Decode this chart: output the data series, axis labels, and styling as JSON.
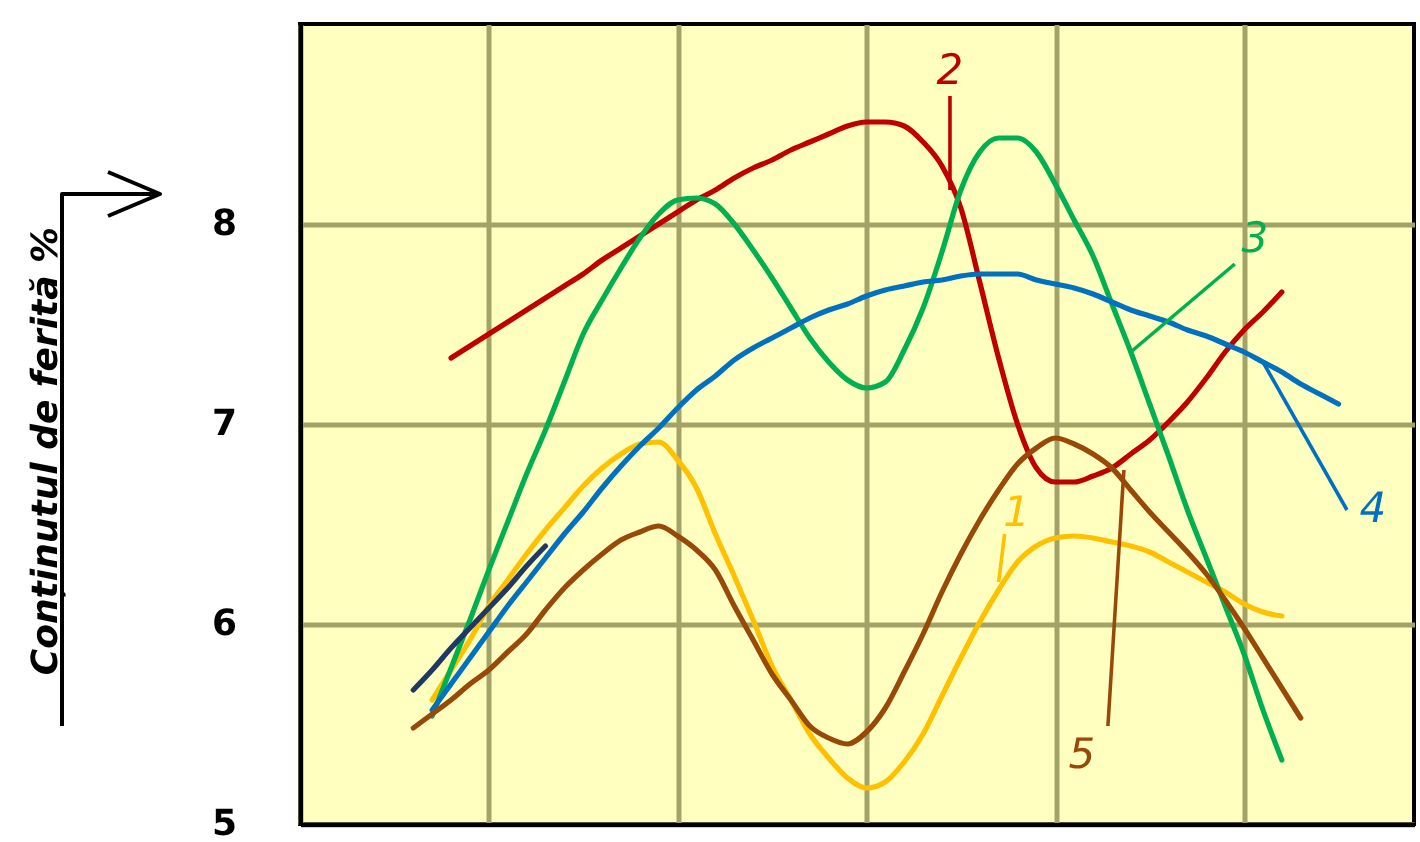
{
  "chart_data": {
    "type": "line",
    "ylabel": "Conținutul de ferită %",
    "categories": [
      null,
      null,
      null,
      null,
      null,
      null,
      null,
      null,
      null,
      null,
      null,
      null,
      null,
      null,
      null,
      null,
      null,
      null,
      null,
      null,
      null,
      null,
      null,
      null,
      null,
      null,
      null,
      null,
      null,
      null,
      null,
      null,
      null,
      null,
      null,
      null,
      null,
      null,
      null,
      null,
      null,
      null,
      null,
      null,
      null,
      null,
      null,
      null,
      null,
      null,
      null,
      null,
      null,
      null,
      null,
      null,
      null,
      null,
      null,
      null
    ],
    "ylim": [
      5,
      9
    ],
    "yticks": [
      5,
      6,
      7,
      8
    ],
    "grid": true,
    "tick_labels": "y",
    "series": [
      {
        "name": "1",
        "color": "#ffc000",
        "values": [
          null,
          null,
          null,
          null,
          null,
          null,
          null,
          5.62,
          5.77,
          5.92,
          6.09,
          6.22,
          6.35,
          6.47,
          6.58,
          6.69,
          6.78,
          6.85,
          6.9,
          6.91,
          6.82,
          6.68,
          6.45,
          6.24,
          6.02,
          5.79,
          5.62,
          5.45,
          5.33,
          5.23,
          5.18,
          5.21,
          5.31,
          5.45,
          5.64,
          5.83,
          6.01,
          6.17,
          6.31,
          6.39,
          6.43,
          6.44,
          6.43,
          6.41,
          6.39,
          6.36,
          6.31,
          6.26,
          6.21,
          6.16,
          6.1,
          6.06,
          6.04,
          null,
          null,
          null,
          null,
          null,
          null,
          null
        ]
      },
      {
        "name": "2",
        "color": "#c00000",
        "values": [
          null,
          null,
          null,
          null,
          null,
          null,
          null,
          null,
          7.33,
          7.39,
          7.45,
          7.51,
          7.57,
          7.63,
          7.69,
          7.75,
          7.82,
          7.88,
          7.94,
          8.0,
          8.06,
          8.12,
          8.17,
          8.23,
          8.28,
          8.32,
          8.37,
          8.41,
          8.45,
          8.49,
          8.51,
          8.51,
          8.49,
          8.41,
          8.29,
          8.08,
          7.71,
          7.33,
          7.0,
          6.78,
          6.71,
          6.71,
          6.74,
          6.78,
          6.85,
          6.92,
          7.01,
          7.11,
          7.23,
          7.36,
          7.47,
          7.56,
          7.66,
          null,
          null,
          null,
          null,
          null,
          null,
          null
        ]
      },
      {
        "name": "3",
        "color": "#00b050",
        "values": [
          null,
          null,
          null,
          null,
          null,
          null,
          null,
          5.54,
          5.78,
          6.02,
          6.27,
          6.51,
          6.75,
          6.97,
          7.21,
          7.45,
          7.62,
          7.78,
          7.93,
          8.05,
          8.12,
          8.13,
          8.1,
          8.0,
          7.87,
          7.73,
          7.58,
          7.43,
          7.31,
          7.22,
          7.18,
          7.21,
          7.37,
          7.58,
          7.86,
          8.17,
          8.36,
          8.43,
          8.43,
          8.36,
          8.2,
          8.02,
          7.84,
          7.6,
          7.36,
          7.1,
          6.84,
          6.57,
          6.33,
          6.09,
          5.85,
          5.57,
          5.32,
          null,
          null,
          null,
          null,
          null,
          null,
          null
        ]
      },
      {
        "name": "4",
        "color": "#0070c0",
        "values": [
          null,
          null,
          null,
          null,
          null,
          null,
          null,
          5.57,
          5.7,
          5.83,
          5.96,
          6.09,
          6.21,
          6.33,
          6.45,
          6.56,
          6.68,
          6.79,
          6.89,
          6.98,
          7.08,
          7.17,
          7.24,
          7.32,
          7.38,
          7.43,
          7.48,
          7.53,
          7.57,
          7.6,
          7.64,
          7.67,
          7.69,
          7.71,
          7.72,
          7.74,
          7.75,
          7.75,
          7.75,
          7.72,
          7.7,
          7.68,
          7.65,
          7.61,
          7.57,
          7.54,
          7.51,
          7.47,
          7.44,
          7.4,
          7.36,
          7.31,
          7.26,
          7.2,
          7.15,
          7.1,
          null,
          null,
          null,
          null
        ]
      },
      {
        "name": "5",
        "color": "#984807",
        "values": [
          null,
          null,
          null,
          null,
          null,
          null,
          5.48,
          5.55,
          5.62,
          5.7,
          5.77,
          5.86,
          5.95,
          6.07,
          6.18,
          6.27,
          6.35,
          6.42,
          6.46,
          6.49,
          6.44,
          6.37,
          6.27,
          6.09,
          5.92,
          5.75,
          5.62,
          5.49,
          5.43,
          5.4,
          5.46,
          5.58,
          5.76,
          5.95,
          6.16,
          6.35,
          6.52,
          6.67,
          6.8,
          6.88,
          6.93,
          6.9,
          6.85,
          6.78,
          6.67,
          6.56,
          6.46,
          6.36,
          6.25,
          6.12,
          5.98,
          5.83,
          5.68,
          5.53,
          null,
          null,
          null,
          null,
          null,
          null
        ]
      },
      {
        "color": "#1f3864",
        "values": [
          null,
          null,
          null,
          null,
          null,
          null,
          5.67,
          5.77,
          5.88,
          5.98,
          6.08,
          6.18,
          6.29,
          6.39,
          null,
          null,
          null,
          null,
          null,
          null,
          null,
          null,
          null,
          null,
          null,
          null,
          null,
          null,
          null,
          null,
          null,
          null,
          null,
          null,
          null,
          null,
          null,
          null,
          null,
          null,
          null,
          null,
          null,
          null,
          null,
          null,
          null,
          null,
          null,
          null,
          null,
          null,
          null,
          null,
          null,
          null,
          null,
          null,
          null,
          null
        ]
      }
    ]
  }
}
